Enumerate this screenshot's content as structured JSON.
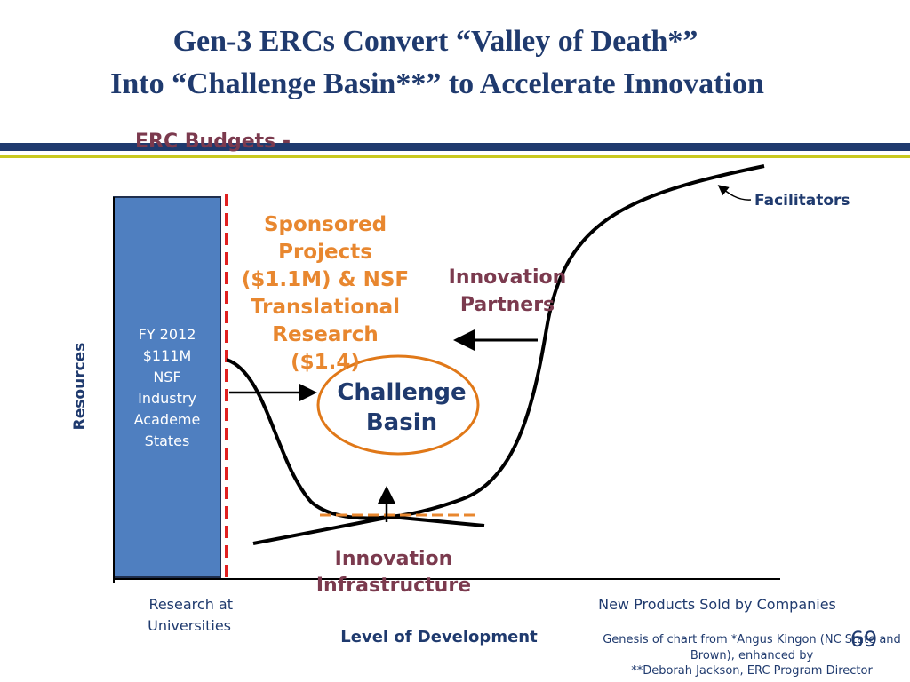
{
  "header": {
    "title": [
      "Gen-3 ERCs Convert “Valley of Death*”",
      "Into “Challenge Basin**” to Accelerate Innovation"
    ]
  },
  "diagram": {
    "budgets_label": "ERC Budgets -",
    "bar_text": [
      "FY 2012",
      "$111M",
      "NSF",
      "Industry",
      "Academe",
      "States"
    ],
    "sponsored": [
      "Sponsored",
      "Projects",
      "($1.1M) & NSF",
      "Translational",
      "Research",
      "($1.4)"
    ],
    "partners": [
      "Innovation",
      "Partners"
    ],
    "basin": [
      "Challenge",
      "Basin"
    ],
    "facilitators": "Facilitators",
    "infrastructure": [
      "Innovation",
      "Infrastructure"
    ],
    "y_axis_label": "Resources",
    "x_left_label": [
      "Research at",
      "Universities"
    ],
    "x_right_label": "New Products Sold by Companies",
    "x_axis_label": "Level of Development"
  },
  "footer": {
    "page_number": "69",
    "note": [
      "Genesis of chart from *Angus Kingon (NC State and",
      "Brown), enhanced by",
      "**Deborah Jackson, ERC Program Director"
    ]
  }
}
